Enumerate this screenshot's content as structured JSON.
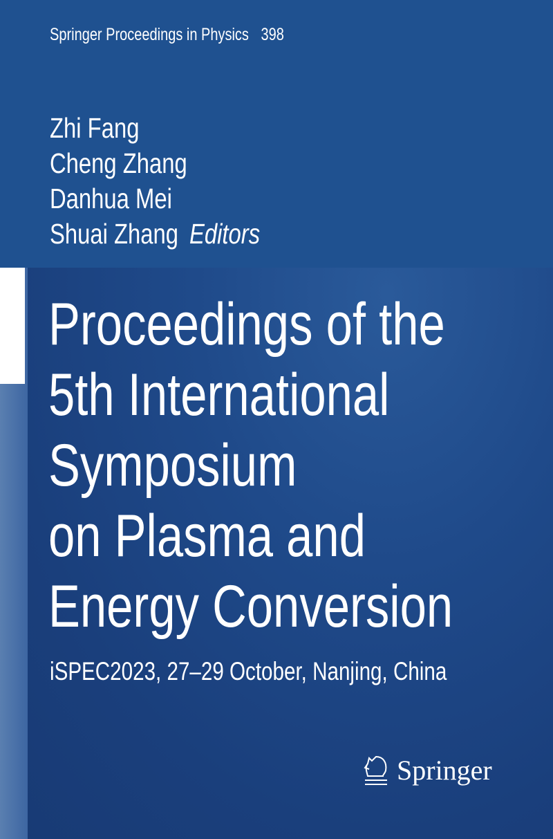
{
  "series": {
    "name": "Springer Proceedings in Physics",
    "volume": "398"
  },
  "editors": {
    "names": [
      "Zhi Fang",
      "Cheng Zhang",
      "Danhua Mei",
      "Shuai Zhang"
    ],
    "role": "Editors"
  },
  "title": {
    "lines": [
      "Proceedings of the",
      "5th International",
      "Symposium",
      "on Plasma and",
      "Energy Conversion"
    ]
  },
  "subtitle": "iSPEC2023, 27–29 October, Nanjing, China",
  "publisher": {
    "name": "Springer",
    "icon": "knight-chess-horse-icon"
  },
  "colors": {
    "top_band": "#1f5190",
    "background": "#1d4482",
    "text": "#ffffff"
  }
}
